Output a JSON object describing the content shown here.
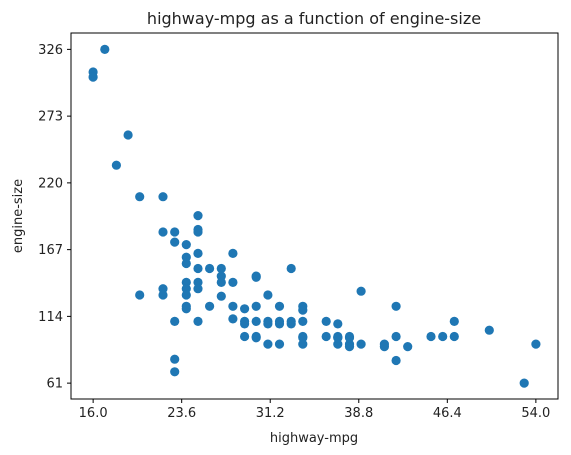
{
  "chart_data": {
    "type": "scatter",
    "title": "highway-mpg as a function of engine-size",
    "xlabel": "highway-mpg",
    "ylabel": "engine-size",
    "xlim": [
      14.1,
      55.9
    ],
    "ylim": [
      48.4,
      339
    ],
    "xticks": [
      "16.0",
      "23.6",
      "31.2",
      "38.8",
      "46.4",
      "54.0"
    ],
    "yticks": [
      "61",
      "114",
      "167",
      "220",
      "273",
      "326"
    ],
    "marker_color": "#1f77b4",
    "grid": false,
    "points": [
      {
        "x": 16,
        "y": 308
      },
      {
        "x": 16,
        "y": 304
      },
      {
        "x": 17,
        "y": 326
      },
      {
        "x": 18,
        "y": 234
      },
      {
        "x": 19,
        "y": 258
      },
      {
        "x": 20,
        "y": 209
      },
      {
        "x": 20,
        "y": 131
      },
      {
        "x": 22,
        "y": 209
      },
      {
        "x": 22,
        "y": 181
      },
      {
        "x": 22,
        "y": 136
      },
      {
        "x": 22,
        "y": 131
      },
      {
        "x": 23,
        "y": 181
      },
      {
        "x": 23,
        "y": 173
      },
      {
        "x": 23,
        "y": 110
      },
      {
        "x": 23,
        "y": 80
      },
      {
        "x": 23,
        "y": 70
      },
      {
        "x": 24,
        "y": 171
      },
      {
        "x": 24,
        "y": 161
      },
      {
        "x": 24,
        "y": 156
      },
      {
        "x": 24,
        "y": 141
      },
      {
        "x": 24,
        "y": 136
      },
      {
        "x": 24,
        "y": 131
      },
      {
        "x": 24,
        "y": 122
      },
      {
        "x": 24,
        "y": 120
      },
      {
        "x": 25,
        "y": 194
      },
      {
        "x": 25,
        "y": 183
      },
      {
        "x": 25,
        "y": 181
      },
      {
        "x": 25,
        "y": 164
      },
      {
        "x": 25,
        "y": 152
      },
      {
        "x": 25,
        "y": 141
      },
      {
        "x": 25,
        "y": 136
      },
      {
        "x": 25,
        "y": 110
      },
      {
        "x": 26,
        "y": 152
      },
      {
        "x": 26,
        "y": 122
      },
      {
        "x": 27,
        "y": 152
      },
      {
        "x": 27,
        "y": 146
      },
      {
        "x": 27,
        "y": 141
      },
      {
        "x": 27,
        "y": 130
      },
      {
        "x": 28,
        "y": 164
      },
      {
        "x": 28,
        "y": 141
      },
      {
        "x": 28,
        "y": 122
      },
      {
        "x": 28,
        "y": 112
      },
      {
        "x": 29,
        "y": 120
      },
      {
        "x": 29,
        "y": 110
      },
      {
        "x": 29,
        "y": 108
      },
      {
        "x": 29,
        "y": 98
      },
      {
        "x": 30,
        "y": 146
      },
      {
        "x": 30,
        "y": 145
      },
      {
        "x": 30,
        "y": 122
      },
      {
        "x": 30,
        "y": 110
      },
      {
        "x": 30,
        "y": 98
      },
      {
        "x": 30,
        "y": 97
      },
      {
        "x": 31,
        "y": 131
      },
      {
        "x": 31,
        "y": 110
      },
      {
        "x": 31,
        "y": 108
      },
      {
        "x": 31,
        "y": 92
      },
      {
        "x": 32,
        "y": 122
      },
      {
        "x": 32,
        "y": 110
      },
      {
        "x": 32,
        "y": 108
      },
      {
        "x": 32,
        "y": 92
      },
      {
        "x": 33,
        "y": 152
      },
      {
        "x": 33,
        "y": 110
      },
      {
        "x": 33,
        "y": 108
      },
      {
        "x": 34,
        "y": 122
      },
      {
        "x": 34,
        "y": 119
      },
      {
        "x": 34,
        "y": 110
      },
      {
        "x": 34,
        "y": 98
      },
      {
        "x": 34,
        "y": 97
      },
      {
        "x": 34,
        "y": 92
      },
      {
        "x": 36,
        "y": 110
      },
      {
        "x": 36,
        "y": 98
      },
      {
        "x": 37,
        "y": 108
      },
      {
        "x": 37,
        "y": 98
      },
      {
        "x": 37,
        "y": 97
      },
      {
        "x": 37,
        "y": 92
      },
      {
        "x": 37,
        "y": 97
      },
      {
        "x": 38,
        "y": 98
      },
      {
        "x": 38,
        "y": 92
      },
      {
        "x": 38,
        "y": 90
      },
      {
        "x": 38,
        "y": 97
      },
      {
        "x": 39,
        "y": 134
      },
      {
        "x": 39,
        "y": 92
      },
      {
        "x": 41,
        "y": 92
      },
      {
        "x": 41,
        "y": 90
      },
      {
        "x": 42,
        "y": 122
      },
      {
        "x": 42,
        "y": 98
      },
      {
        "x": 42,
        "y": 79
      },
      {
        "x": 43,
        "y": 90
      },
      {
        "x": 45,
        "y": 98
      },
      {
        "x": 46,
        "y": 98
      },
      {
        "x": 47,
        "y": 110
      },
      {
        "x": 47,
        "y": 98
      },
      {
        "x": 50,
        "y": 103
      },
      {
        "x": 53,
        "y": 61
      },
      {
        "x": 54,
        "y": 92
      }
    ]
  }
}
